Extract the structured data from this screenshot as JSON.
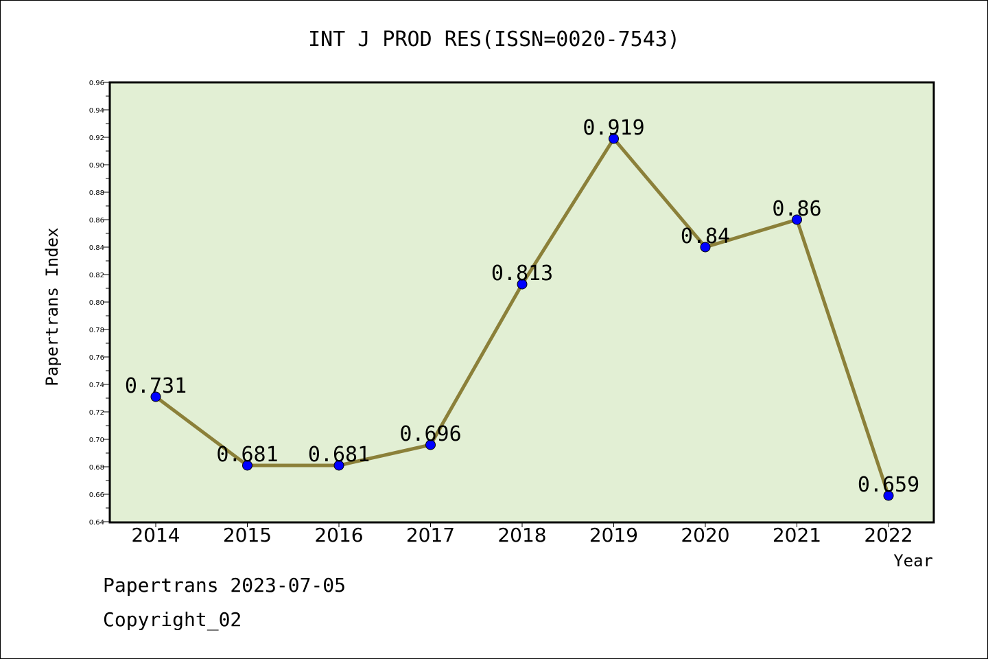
{
  "chart_data": {
    "type": "line",
    "title": "INT J PROD RES(ISSN=0020-7543)",
    "xlabel": "Year",
    "ylabel": "Papertrans Index",
    "categories": [
      "2014",
      "2015",
      "2016",
      "2017",
      "2018",
      "2019",
      "2020",
      "2021",
      "2022"
    ],
    "series": [
      {
        "values": [
          0.731,
          0.681,
          0.681,
          0.696,
          0.813,
          0.919,
          0.84,
          0.86,
          0.659
        ],
        "data_labels": [
          "0.731",
          "0.681",
          "0.681",
          "0.696",
          "0.813",
          "0.919",
          "0.84",
          "0.86",
          "0.659"
        ],
        "line_color": "#8b8039",
        "marker_color": "#0000ff"
      }
    ],
    "ylim": [
      0.64,
      0.96
    ],
    "yticks": [
      "0.64",
      "0.66",
      "0.68",
      "0.70",
      "0.72",
      "0.74",
      "0.76",
      "0.78",
      "0.80",
      "0.82",
      "0.84",
      "0.86",
      "0.88",
      "0.90",
      "0.92",
      "0.94",
      "0.96"
    ],
    "plot_background": "#e2efd4",
    "grid": false,
    "legend": "none"
  },
  "footer": {
    "source_line": "Papertrans 2023-07-05",
    "copyright_line": "Copyright_02"
  }
}
